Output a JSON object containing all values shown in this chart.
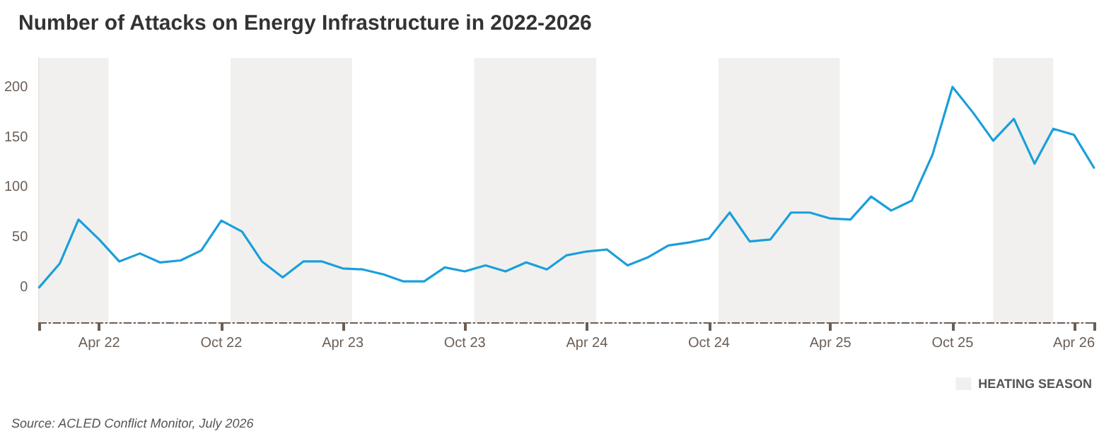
{
  "chart_data": {
    "type": "line",
    "title": "Number of Attacks on Energy Infrastructure in 2022-2026",
    "x": [
      "2022-01",
      "2022-02",
      "2022-03",
      "2022-04",
      "2022-05",
      "2022-06",
      "2022-07",
      "2022-08",
      "2022-09",
      "2022-10",
      "2022-11",
      "2022-12",
      "2023-01",
      "2023-02",
      "2023-03",
      "2023-04",
      "2023-05",
      "2023-06",
      "2023-07",
      "2023-08",
      "2023-09",
      "2023-10",
      "2023-11",
      "2023-12",
      "2024-01",
      "2024-02",
      "2024-03",
      "2024-04",
      "2024-05",
      "2024-06",
      "2024-07",
      "2024-08",
      "2024-09",
      "2024-10",
      "2024-11",
      "2024-12",
      "2025-01",
      "2025-02",
      "2025-03",
      "2025-04",
      "2025-05",
      "2025-06",
      "2025-07",
      "2025-08",
      "2025-09",
      "2025-10",
      "2025-11",
      "2025-12",
      "2026-01",
      "2026-02",
      "2026-03",
      "2026-04",
      "2026-05"
    ],
    "series": [
      {
        "color": "#1a9fdb",
        "values": [
          0,
          24,
          68,
          48,
          26,
          34,
          25,
          27,
          37,
          67,
          56,
          26,
          10,
          26,
          26,
          19,
          18,
          13,
          6,
          6,
          20,
          16,
          22,
          16,
          25,
          18,
          32,
          36,
          38,
          22,
          30,
          42,
          45,
          49,
          75,
          46,
          48,
          75,
          75,
          69,
          68,
          91,
          77,
          87,
          133,
          201,
          175,
          147,
          169,
          124,
          159,
          153,
          120
        ]
      }
    ],
    "xlim": [
      "2022-01",
      "2026-05"
    ],
    "xticks": [
      {
        "value": "2022-01",
        "label": null
      },
      {
        "value": "2022-04",
        "label": "Apr 22"
      },
      {
        "value": "2022-10",
        "label": "Oct 22"
      },
      {
        "value": "2023-04",
        "label": "Apr 23"
      },
      {
        "value": "2023-10",
        "label": "Oct 23"
      },
      {
        "value": "2024-04",
        "label": "Apr 24"
      },
      {
        "value": "2024-10",
        "label": "Oct 24"
      },
      {
        "value": "2025-04",
        "label": "Apr 25"
      },
      {
        "value": "2025-10",
        "label": "Oct 25"
      },
      {
        "value": "2026-04",
        "label": "Apr 26"
      },
      {
        "value": "2026-05",
        "label": null
      }
    ],
    "ylim": [
      -35,
      230
    ],
    "yticks": [
      0,
      50,
      100,
      150,
      200
    ],
    "bands": [
      {
        "axis": "x",
        "from": "2022-01-01",
        "to": "2022-04-15",
        "label": "HEATING SEASON",
        "color": "#f1f0ee"
      },
      {
        "axis": "x",
        "from": "2022-10-15",
        "to": "2023-04-15",
        "color": "#f1f0ee"
      },
      {
        "axis": "x",
        "from": "2023-10-15",
        "to": "2024-04-15",
        "color": "#f1f0ee"
      },
      {
        "axis": "x",
        "from": "2024-10-15",
        "to": "2025-04-15",
        "color": "#f1f0ee"
      },
      {
        "axis": "x",
        "from": "2025-12-01",
        "to": "2026-03-01",
        "color": "#f1f0ee"
      }
    ],
    "annotations": [
      "Source: ACLED Conflict Monitor, July 2026"
    ],
    "grid": false,
    "legend": "bottom right",
    "marker": "none",
    "line_style": "solid"
  }
}
